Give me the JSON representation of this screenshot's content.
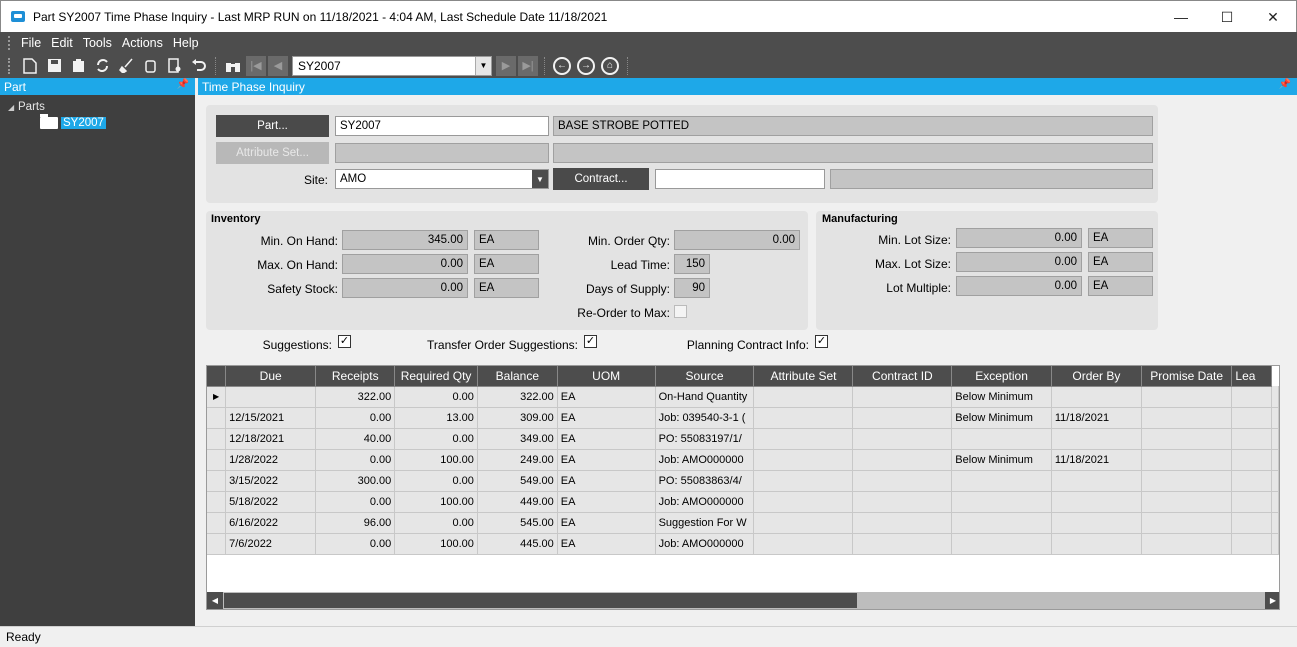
{
  "window": {
    "title": "Part SY2007 Time Phase Inquiry  - Last MRP RUN on 11/18/2021 - 4:04 AM, Last Schedule Date  11/18/2021",
    "minimize": "—",
    "maximize": "☐",
    "close": "✕"
  },
  "menu": [
    "File",
    "Edit",
    "Tools",
    "Actions",
    "Help"
  ],
  "toolbar": {
    "combo_value": "SY2007"
  },
  "left_pane": {
    "title": "Part",
    "tree_root": "Parts",
    "tree_item": "SY2007"
  },
  "right_pane": {
    "title": "Time Phase Inquiry"
  },
  "header": {
    "part_button": "Part...",
    "part_value": "SY2007",
    "part_description": "BASE STROBE POTTED",
    "attribute_button": "Attribute Set...",
    "site_label": "Site:",
    "site_value": "AMO",
    "contract_button": "Contract..."
  },
  "inventory": {
    "title": "Inventory",
    "min_on_hand_label": "Min. On Hand:",
    "min_on_hand": "345.00",
    "min_on_hand_uom": "EA",
    "max_on_hand_label": "Max. On Hand:",
    "max_on_hand": "0.00",
    "max_on_hand_uom": "EA",
    "safety_stock_label": "Safety Stock:",
    "safety_stock": "0.00",
    "safety_stock_uom": "EA",
    "min_order_qty_label": "Min. Order Qty:",
    "min_order_qty": "0.00",
    "lead_time_label": "Lead Time:",
    "lead_time": "150",
    "days_supply_label": "Days of Supply:",
    "days_supply": "90",
    "reorder_label": "Re-Order to Max:"
  },
  "manufacturing": {
    "title": "Manufacturing",
    "min_lot_label": "Min. Lot Size:",
    "min_lot": "0.00",
    "min_lot_uom": "EA",
    "max_lot_label": "Max. Lot Size:",
    "max_lot": "0.00",
    "max_lot_uom": "EA",
    "lot_multiple_label": "Lot Multiple:",
    "lot_multiple": "0.00",
    "lot_multiple_uom": "EA"
  },
  "options": {
    "suggestions_label": "Suggestions:",
    "transfer_label": "Transfer Order Suggestions:",
    "planning_label": "Planning Contract Info:",
    "check_mark": "✓"
  },
  "grid": {
    "columns": [
      "Due",
      "Receipts",
      "Required Qty",
      "Balance",
      "UOM",
      "Source",
      "Attribute Set",
      "Contract ID",
      "Exception",
      "Order By",
      "Promise Date",
      "Lea"
    ],
    "rows": [
      [
        "",
        "322.00",
        "0.00",
        "322.00",
        "EA",
        "On-Hand Quantity",
        "",
        "",
        "Below Minimum",
        "",
        "",
        ""
      ],
      [
        "12/15/2021",
        "0.00",
        "13.00",
        "309.00",
        "EA",
        "Job: 039540-3-1 (",
        "",
        "",
        "Below Minimum",
        "11/18/2021",
        "",
        ""
      ],
      [
        "12/18/2021",
        "40.00",
        "0.00",
        "349.00",
        "EA",
        "PO: 55083197/1/",
        "",
        "",
        "",
        "",
        "",
        ""
      ],
      [
        "1/28/2022",
        "0.00",
        "100.00",
        "249.00",
        "EA",
        "Job: AMO000000",
        "",
        "",
        "Below Minimum",
        "11/18/2021",
        "",
        ""
      ],
      [
        "3/15/2022",
        "300.00",
        "0.00",
        "549.00",
        "EA",
        "PO: 55083863/4/",
        "",
        "",
        "",
        "",
        "",
        ""
      ],
      [
        "5/18/2022",
        "0.00",
        "100.00",
        "449.00",
        "EA",
        "Job: AMO000000",
        "",
        "",
        "",
        "",
        "",
        ""
      ],
      [
        "6/16/2022",
        "96.00",
        "0.00",
        "545.00",
        "EA",
        "Suggestion For W",
        "",
        "",
        "",
        "",
        "",
        ""
      ],
      [
        "7/6/2022",
        "0.00",
        "100.00",
        "445.00",
        "EA",
        "Job: AMO000000",
        "",
        "",
        "",
        "",
        "",
        ""
      ]
    ]
  },
  "status": "Ready"
}
